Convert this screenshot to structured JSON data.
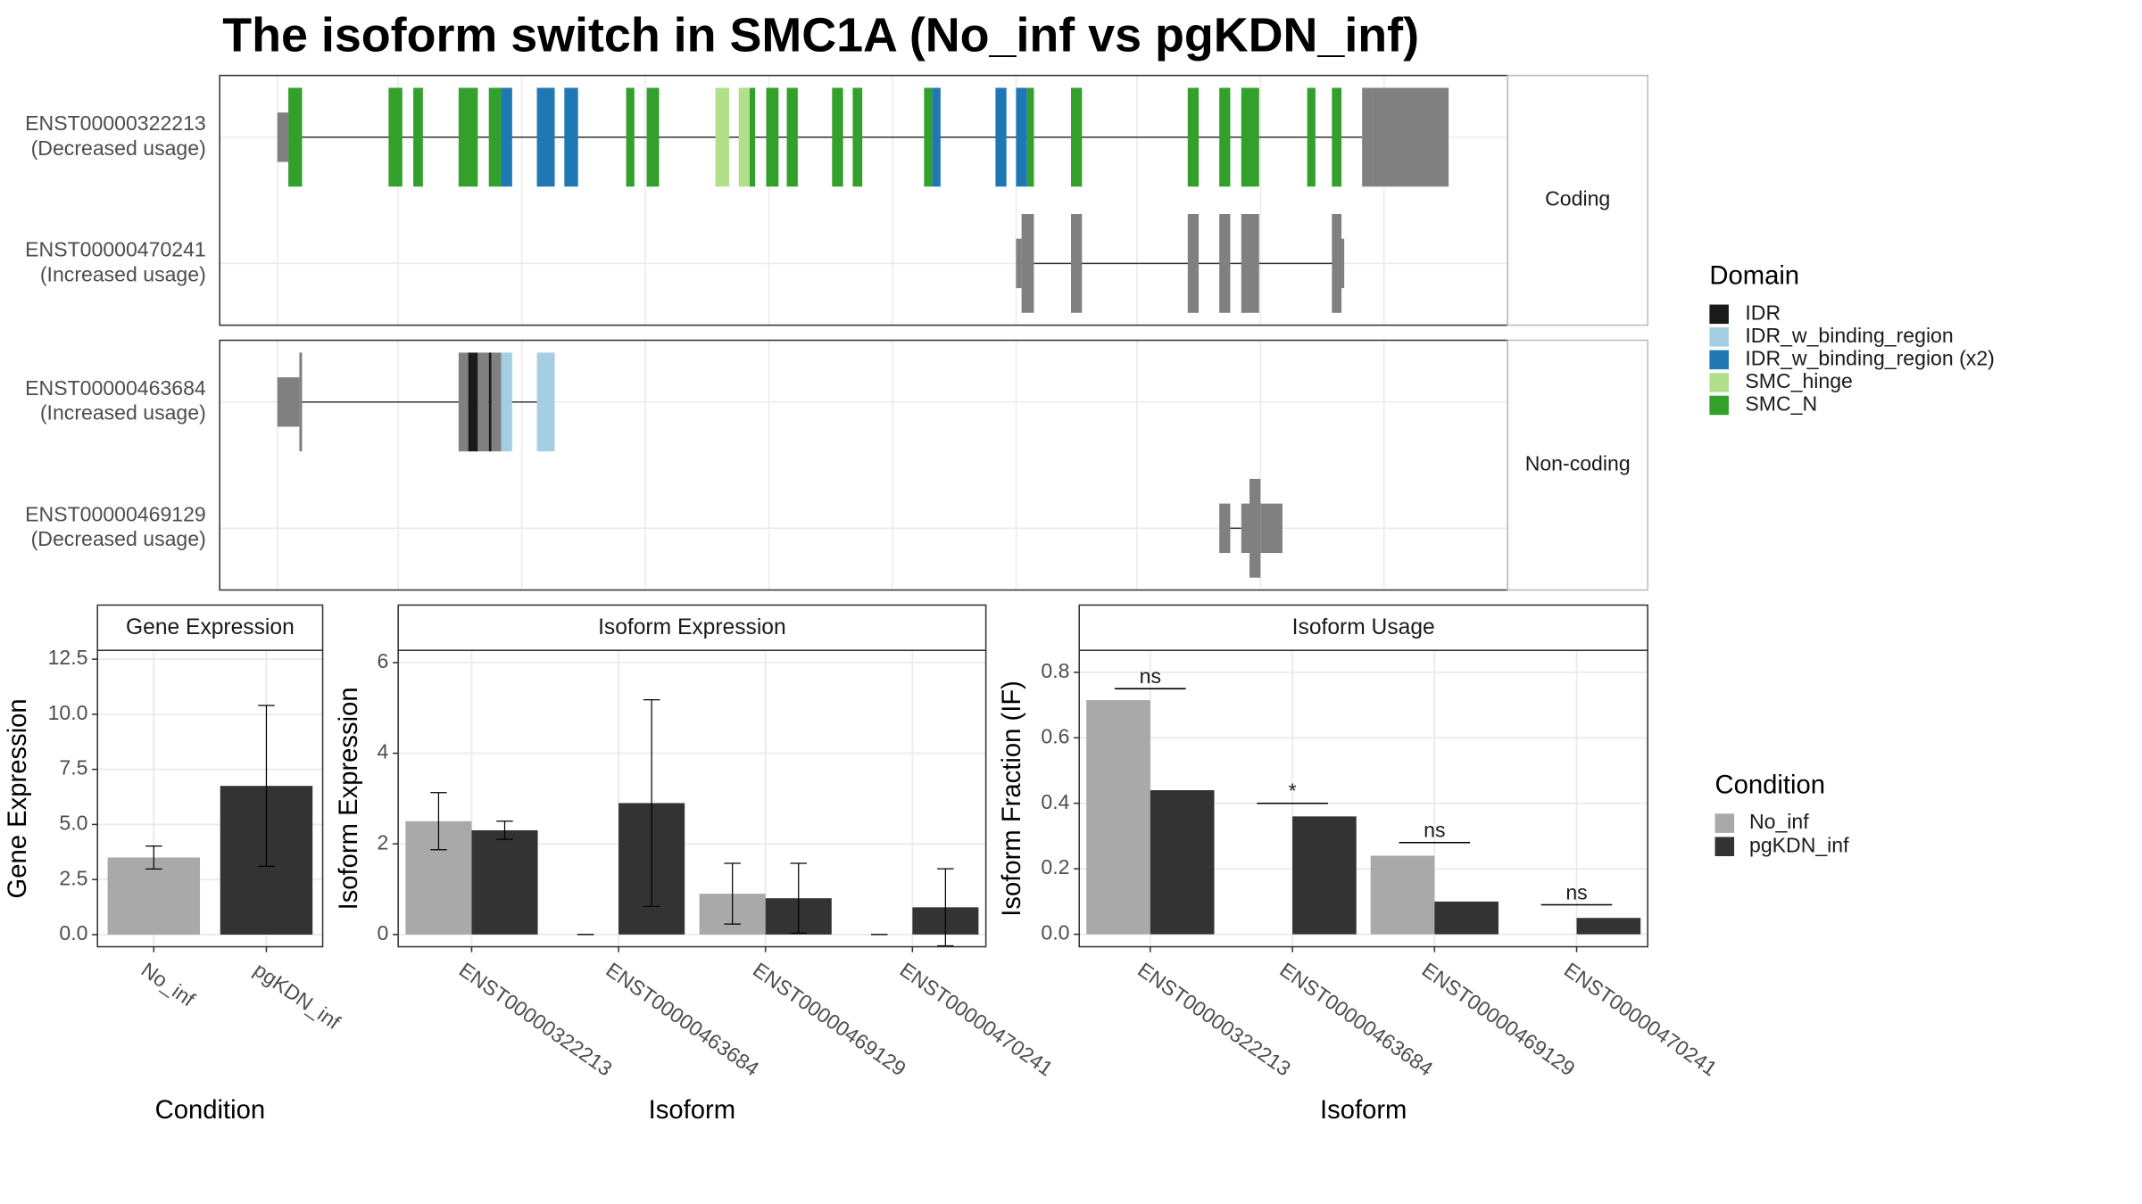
{
  "title": "The isoform switch in SMC1A (No_inf vs pgKDN_inf)",
  "structure": {
    "transcripts": [
      {
        "id": "ENST00000322213",
        "usage": "(Decreased usage)"
      },
      {
        "id": "ENST00000470241",
        "usage": "(Increased usage)"
      },
      {
        "id": "ENST00000463684",
        "usage": "(Increased usage)"
      },
      {
        "id": "ENST00000469129",
        "usage": "(Decreased usage)"
      }
    ],
    "facets": [
      "Coding",
      "Non-coding"
    ],
    "legend": {
      "title": "Domain",
      "items": [
        {
          "name": "IDR",
          "color": "#1a1a1a"
        },
        {
          "name": "IDR_w_binding_region",
          "color": "#a6cee3"
        },
        {
          "name": "IDR_w_binding_region (x2)",
          "color": "#1f78b4"
        },
        {
          "name": "SMC_hinge",
          "color": "#b2df8a"
        },
        {
          "name": "SMC_N",
          "color": "#33a02c"
        }
      ]
    }
  },
  "condition_legend_title": "Condition",
  "chart_data": [
    {
      "type": "bar",
      "title": "Gene Expression",
      "xlabel": "Condition",
      "ylabel": "Gene Expression",
      "categories": [
        "No_inf",
        "pgKDN_inf"
      ],
      "values": [
        3.5,
        6.75
      ],
      "errors": [
        0.52,
        3.65
      ],
      "colors": [
        "#a9a9a9",
        "#333333"
      ],
      "ylim": [
        -0.55,
        12.9
      ],
      "yticks": [
        {
          "value": 0,
          "label": "0.0"
        },
        2.5,
        {
          "value": 5,
          "label": "5.0"
        },
        7.5,
        {
          "value": 10,
          "label": "10.0"
        },
        12.5
      ],
      "grid": true
    },
    {
      "type": "grouped_bar",
      "title": "Isoform Expression",
      "xlabel": "Isoform",
      "ylabel": "Isoform Expression",
      "categories": [
        "ENST00000322213",
        "ENST00000463684",
        "ENST00000469129",
        "ENST00000470241"
      ],
      "series": [
        {
          "name": "No_inf",
          "color": "#a9a9a9",
          "values": [
            2.5,
            0,
            0.9,
            0
          ],
          "errors": [
            0.63,
            0,
            0.67,
            0
          ]
        },
        {
          "name": "pgKDN_inf",
          "color": "#333333",
          "values": [
            2.3,
            2.9,
            0.8,
            0.6
          ],
          "errors": [
            0.2,
            2.28,
            0.77,
            0.85
          ]
        }
      ],
      "ylim": [
        -0.27,
        6.27
      ],
      "yticks": [
        0,
        2,
        4,
        6
      ],
      "grid": true
    },
    {
      "type": "grouped_bar",
      "title": "Isoform Usage",
      "xlabel": "Isoform",
      "ylabel": "Isoform Fraction (IF)",
      "categories": [
        "ENST00000322213",
        "ENST00000463684",
        "ENST00000469129",
        "ENST00000470241"
      ],
      "series": [
        {
          "name": "No_inf",
          "color": "#a9a9a9",
          "values": [
            0.715,
            0,
            0.24,
            0
          ]
        },
        {
          "name": "pgKDN_inf",
          "color": "#333333",
          "values": [
            0.44,
            0.36,
            0.1,
            0.05
          ]
        }
      ],
      "annotations": [
        {
          "label": "ns",
          "y": 0.75
        },
        {
          "label": "*",
          "y": 0.4
        },
        {
          "label": "ns",
          "y": 0.28
        },
        {
          "label": "ns",
          "y": 0.09
        }
      ],
      "ylim": [
        -0.038,
        0.867
      ],
      "yticks": [
        {
          "value": 0,
          "label": "0.0"
        },
        0.2,
        0.4,
        0.6,
        0.8
      ],
      "grid": true
    }
  ]
}
